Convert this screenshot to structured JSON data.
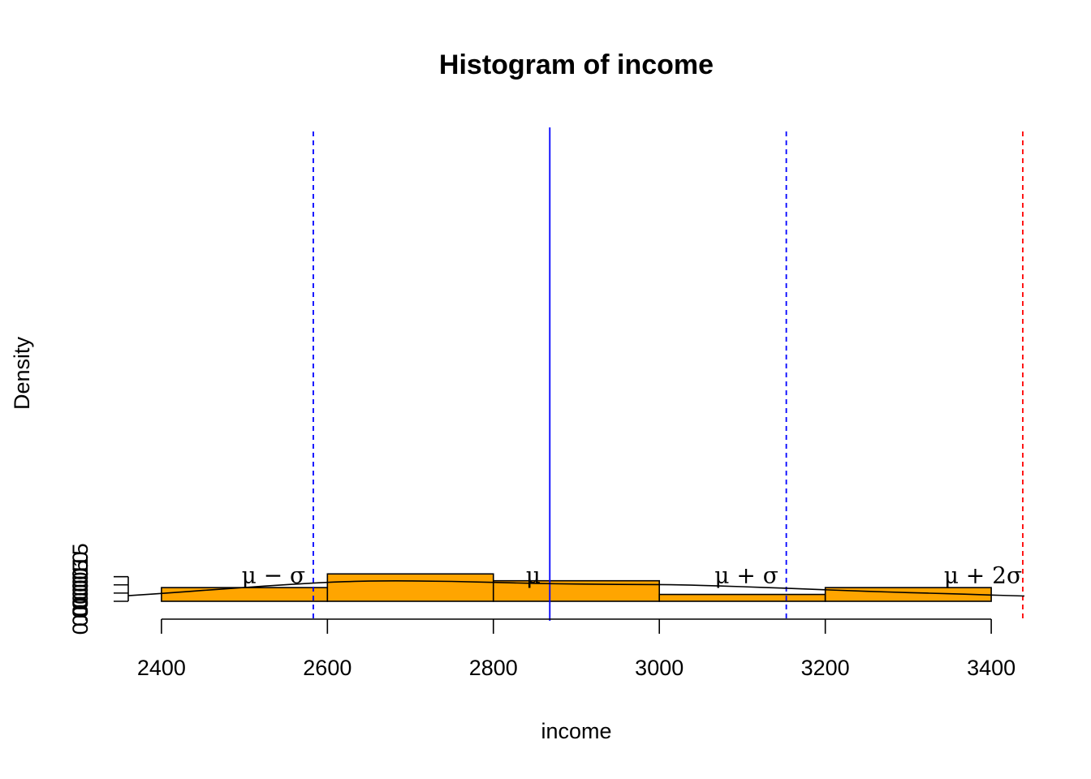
{
  "chart_data": {
    "type": "bar",
    "title": "Histogram of income",
    "xlabel": "income",
    "ylabel": "Density",
    "xlim": [
      2360,
      3440
    ],
    "ylim": [
      0,
      0.00165
    ],
    "x_ticks": [
      2400,
      2600,
      2800,
      3000,
      3200,
      3400
    ],
    "x_tick_labels": [
      "2400",
      "2600",
      "2800",
      "3000",
      "3200",
      "3400"
    ],
    "y_ticks": [
      0,
      0.0005,
      0.001,
      0.0015
    ],
    "y_tick_labels": [
      "0.0000",
      "0.0005",
      "0.0010",
      "0.0015"
    ],
    "bins": [
      {
        "start": 2400,
        "end": 2600,
        "density": 0.000833
      },
      {
        "start": 2600,
        "end": 2800,
        "density": 0.001667
      },
      {
        "start": 2800,
        "end": 3000,
        "density": 0.00125
      },
      {
        "start": 3000,
        "end": 3200,
        "density": 0.000417
      },
      {
        "start": 3200,
        "end": 3400,
        "density": 0.000833
      }
    ],
    "bar_color": "#FFA500",
    "density_curve": {
      "x": [
        2360,
        2400,
        2450,
        2500,
        2550,
        2600,
        2650,
        2700,
        2750,
        2800,
        2850,
        2900,
        2950,
        3000,
        3050,
        3100,
        3150,
        3200,
        3250,
        3300,
        3350,
        3400,
        3440
      ],
      "y": [
        0.00034,
        0.00048,
        0.00066,
        0.00084,
        0.00101,
        0.00115,
        0.00123,
        0.00124,
        0.00121,
        0.00115,
        0.00109,
        0.00105,
        0.00103,
        0.00102,
        0.00097,
        0.00089,
        0.0008,
        0.0007,
        0.00061,
        0.00053,
        0.00046,
        0.00038,
        0.00032
      ]
    },
    "vlines": [
      {
        "x": 2583,
        "color": "#0000FF",
        "style": "dashed"
      },
      {
        "x": 2868,
        "color": "#0000FF",
        "style": "solid"
      },
      {
        "x": 3153,
        "color": "#0000FF",
        "style": "dashed"
      },
      {
        "x": 3438,
        "color": "#FF0000",
        "style": "dashed"
      }
    ],
    "annotations": [
      {
        "text": "μ − σ",
        "x": 2535,
        "y": 0.0015
      },
      {
        "text": "μ",
        "x": 2848,
        "y": 0.0015
      },
      {
        "text": "μ + σ",
        "x": 3105,
        "y": 0.0015
      },
      {
        "text": "μ + 2σ",
        "x": 3390,
        "y": 0.0015
      }
    ]
  }
}
